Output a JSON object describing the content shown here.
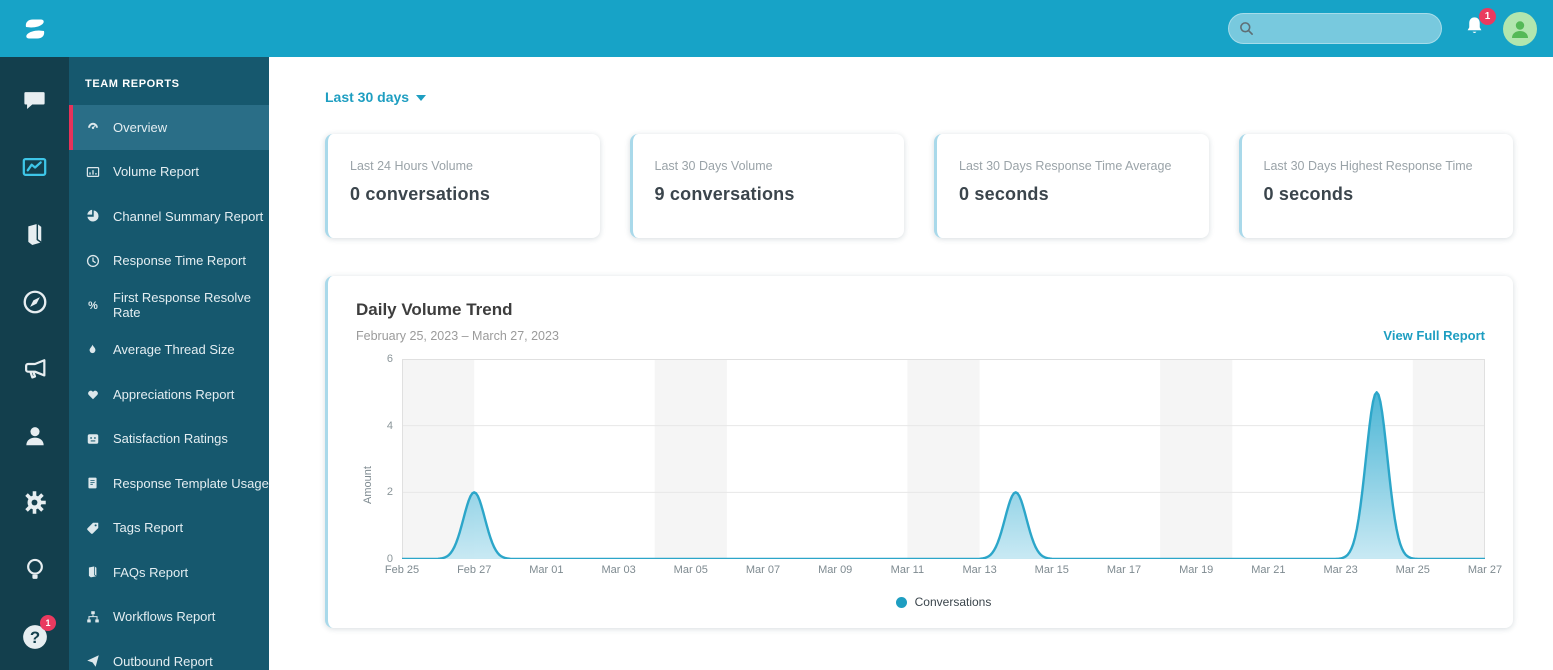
{
  "topbar": {
    "search": {
      "placeholder": ""
    },
    "notifications": {
      "count": "1"
    }
  },
  "rail": {
    "items": [
      {
        "icon": "chat-icon",
        "active": false
      },
      {
        "icon": "reports-icon",
        "active": true
      },
      {
        "icon": "knowledge-book-icon",
        "active": false
      },
      {
        "icon": "compass-icon",
        "active": false
      },
      {
        "icon": "megaphone-icon",
        "active": false
      },
      {
        "icon": "person-icon",
        "active": false
      },
      {
        "icon": "gear-icon",
        "active": false
      },
      {
        "icon": "lightbulb-icon",
        "active": false
      },
      {
        "icon": "help-icon",
        "active": false,
        "badge": "1"
      }
    ]
  },
  "sidebar": {
    "title": "TEAM REPORTS",
    "items": [
      {
        "label": "Overview",
        "icon": "gauge-icon",
        "active": true
      },
      {
        "label": "Volume Report",
        "icon": "bar-chart-icon",
        "active": false
      },
      {
        "label": "Channel Summary Report",
        "icon": "pie-chart-icon",
        "active": false
      },
      {
        "label": "Response Time Report",
        "icon": "clock-icon",
        "active": false
      },
      {
        "label": "First Response Resolve Rate",
        "icon": "percent-icon",
        "active": false
      },
      {
        "label": "Average Thread Size",
        "icon": "flame-icon",
        "active": false
      },
      {
        "label": "Appreciations Report",
        "icon": "heart-icon",
        "active": false
      },
      {
        "label": "Satisfaction Ratings",
        "icon": "smiley-icon",
        "active": false
      },
      {
        "label": "Response Template Usage",
        "icon": "document-icon",
        "active": false
      },
      {
        "label": "Tags Report",
        "icon": "tag-icon",
        "active": false
      },
      {
        "label": "FAQs Report",
        "icon": "book-icon",
        "active": false
      },
      {
        "label": "Workflows Report",
        "icon": "sitemap-icon",
        "active": false
      },
      {
        "label": "Outbound Report",
        "icon": "paper-plane-icon",
        "active": false
      }
    ]
  },
  "main": {
    "date_filter": {
      "label": "Last 30 days"
    },
    "stat_cards": [
      {
        "label": "Last 24 Hours Volume",
        "value": "0 conversations"
      },
      {
        "label": "Last 30 Days Volume",
        "value": "9 conversations"
      },
      {
        "label": "Last 30 Days Response Time Average",
        "value": "0 seconds"
      },
      {
        "label": "Last 30 Days Highest Response Time",
        "value": "0 seconds"
      }
    ],
    "chart_card": {
      "title": "Daily Volume Trend",
      "subtitle": "February 25, 2023 – March 27, 2023",
      "link": "View Full Report"
    }
  },
  "colors": {
    "topbar": "#17A3C7",
    "rail": "#133F4D",
    "sidebar": "#16586E",
    "sidebar_active": "#2A6E87",
    "accent_pink": "#E8325A",
    "link_teal": "#1E9EC1",
    "card_border": "#A9D9EA",
    "avatar_bg": "#B2E6AE",
    "avatar_person": "#55B957"
  },
  "chart_data": {
    "type": "area",
    "title": "Daily Volume Trend",
    "date_range": "February 25, 2023 – March 27, 2023",
    "xlabel": "",
    "ylabel": "Amount",
    "ylim": [
      0,
      6
    ],
    "yticks": [
      0,
      2,
      4,
      6
    ],
    "x_tick_labels": [
      "Feb 25",
      "Feb 27",
      "Mar 01",
      "Mar 03",
      "Mar 05",
      "Mar 07",
      "Mar 09",
      "Mar 11",
      "Mar 13",
      "Mar 15",
      "Mar 17",
      "Mar 19",
      "Mar 21",
      "Mar 23",
      "Mar 25",
      "Mar 27"
    ],
    "days": [
      "Feb 25",
      "Feb 26",
      "Feb 27",
      "Feb 28",
      "Mar 01",
      "Mar 02",
      "Mar 03",
      "Mar 04",
      "Mar 05",
      "Mar 06",
      "Mar 07",
      "Mar 08",
      "Mar 09",
      "Mar 10",
      "Mar 11",
      "Mar 12",
      "Mar 13",
      "Mar 14",
      "Mar 15",
      "Mar 16",
      "Mar 17",
      "Mar 18",
      "Mar 19",
      "Mar 20",
      "Mar 21",
      "Mar 22",
      "Mar 23",
      "Mar 24",
      "Mar 25",
      "Mar 26",
      "Mar 27"
    ],
    "series": [
      {
        "name": "Conversations",
        "values": [
          0,
          0,
          2,
          0,
          0,
          0,
          0,
          0,
          0,
          0,
          0,
          0,
          0,
          0,
          0,
          0,
          0,
          2,
          0,
          0,
          0,
          0,
          0,
          0,
          0,
          0,
          0,
          5,
          0,
          0,
          0
        ]
      }
    ],
    "peaks": [
      {
        "date": "Feb 27",
        "value": 2
      },
      {
        "date": "Mar 14",
        "value": 2
      },
      {
        "date": "Mar 24",
        "value": 5
      }
    ],
    "weekend_band_day_ranges": [
      [
        0,
        2
      ],
      [
        7,
        9
      ],
      [
        14,
        16
      ],
      [
        21,
        23
      ],
      [
        28,
        30
      ]
    ],
    "legend": [
      "Conversations"
    ],
    "legend_position": "bottom-center",
    "grid": true,
    "colors": {
      "line": "#2CA6C9",
      "fill_top": "#3EB0D2",
      "fill_bottom": "#C6E8F3",
      "band": "#F5F5F5",
      "grid": "#E7E7E7",
      "plot_border": "#E0E0E0"
    }
  }
}
